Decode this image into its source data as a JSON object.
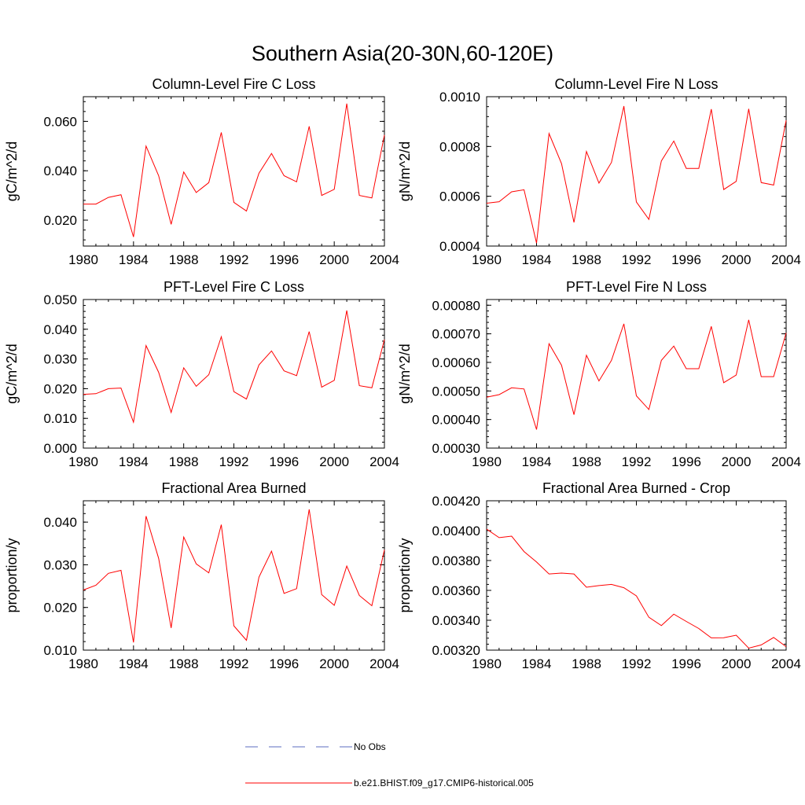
{
  "figure_title": "Southern Asia(20-30N,60-120E)",
  "colors": {
    "model_line": "#ff0000",
    "obs_line": "#5b6cc2",
    "axes": "#000000"
  },
  "legend": {
    "obs_label": "No Obs",
    "model_label": "b.e21.BHIST.f09_g17.CMIP6-historical.005"
  },
  "chart_data": [
    {
      "type": "line",
      "title": "Column-Level Fire C Loss",
      "xlabel": "",
      "ylabel": "gC/m^2/d",
      "xlim": [
        1980,
        2004
      ],
      "ylim": [
        0.0095,
        0.07
      ],
      "xticks": [
        "1980",
        "1984",
        "1988",
        "1992",
        "1996",
        "2000",
        "2004"
      ],
      "yticks": [
        {
          "v": 0.02,
          "label": "0.020"
        },
        {
          "v": 0.04,
          "label": "0.040"
        },
        {
          "v": 0.06,
          "label": "0.060"
        }
      ],
      "yminor": 0.004,
      "x": [
        1980,
        1981,
        1982,
        1983,
        1984,
        1985,
        1986,
        1987,
        1988,
        1989,
        1990,
        1991,
        1992,
        1993,
        1994,
        1995,
        1996,
        1997,
        1998,
        1999,
        2000,
        2001,
        2002,
        2003,
        2004
      ],
      "series": [
        {
          "values": [
            0.0265,
            0.0265,
            0.0292,
            0.0303,
            0.0132,
            0.05,
            0.038,
            0.0183,
            0.0395,
            0.0312,
            0.0352,
            0.0555,
            0.0272,
            0.0237,
            0.039,
            0.047,
            0.038,
            0.0355,
            0.058,
            0.03,
            0.0325,
            0.0672,
            0.03,
            0.029,
            0.0545
          ]
        }
      ]
    },
    {
      "type": "line",
      "title": "Column-Level Fire N Loss",
      "xlabel": "",
      "ylabel": "gN/m^2/d",
      "xlim": [
        1980,
        2004
      ],
      "ylim": [
        0.0004,
        0.001
      ],
      "xticks": [
        "1980",
        "1984",
        "1988",
        "1992",
        "1996",
        "2000",
        "2004"
      ],
      "yticks": [
        {
          "v": 0.0004,
          "label": "0.0004"
        },
        {
          "v": 0.0006,
          "label": "0.0006"
        },
        {
          "v": 0.0008,
          "label": "0.0008"
        },
        {
          "v": 0.001,
          "label": "0.0010"
        }
      ],
      "yminor": 4e-05,
      "x": [
        1980,
        1981,
        1982,
        1983,
        1984,
        1985,
        1986,
        1987,
        1988,
        1989,
        1990,
        1991,
        1992,
        1993,
        1994,
        1995,
        1996,
        1997,
        1998,
        1999,
        2000,
        2001,
        2002,
        2003,
        2004
      ],
      "series": [
        {
          "values": [
            0.000572,
            0.000578,
            0.000618,
            0.000626,
            0.000412,
            0.000852,
            0.000731,
            0.000495,
            0.00078,
            0.000653,
            0.000736,
            0.000962,
            0.000577,
            0.000507,
            0.000742,
            0.000822,
            0.000712,
            0.000712,
            0.00095,
            0.000627,
            0.00066,
            0.000951,
            0.000655,
            0.000645,
            0.000905
          ]
        }
      ]
    },
    {
      "type": "line",
      "title": "PFT-Level Fire C Loss",
      "xlabel": "",
      "ylabel": "gC/m^2/d",
      "xlim": [
        1980,
        2004
      ],
      "ylim": [
        0.0,
        0.05
      ],
      "xticks": [
        "1980",
        "1984",
        "1988",
        "1992",
        "1996",
        "2000",
        "2004"
      ],
      "yticks": [
        {
          "v": 0.0,
          "label": "0.000"
        },
        {
          "v": 0.01,
          "label": "0.010"
        },
        {
          "v": 0.02,
          "label": "0.020"
        },
        {
          "v": 0.03,
          "label": "0.030"
        },
        {
          "v": 0.04,
          "label": "0.040"
        },
        {
          "v": 0.05,
          "label": "0.050"
        }
      ],
      "yminor": 0.002,
      "x": [
        1980,
        1981,
        1982,
        1983,
        1984,
        1985,
        1986,
        1987,
        1988,
        1989,
        1990,
        1991,
        1992,
        1993,
        1994,
        1995,
        1996,
        1997,
        1998,
        1999,
        2000,
        2001,
        2002,
        2003,
        2004
      ],
      "series": [
        {
          "values": [
            0.0181,
            0.0183,
            0.02,
            0.0202,
            0.0087,
            0.0345,
            0.0255,
            0.012,
            0.027,
            0.0208,
            0.0247,
            0.0375,
            0.019,
            0.0165,
            0.028,
            0.0327,
            0.026,
            0.0244,
            0.0392,
            0.0205,
            0.0228,
            0.0463,
            0.021,
            0.0203,
            0.0365
          ]
        }
      ]
    },
    {
      "type": "line",
      "title": "PFT-Level Fire N Loss",
      "xlabel": "",
      "ylabel": "gN/m^2/d",
      "xlim": [
        1980,
        2004
      ],
      "ylim": [
        0.0003,
        0.00082
      ],
      "xticks": [
        "1980",
        "1984",
        "1988",
        "1992",
        "1996",
        "2000",
        "2004"
      ],
      "yticks": [
        {
          "v": 0.0003,
          "label": "0.00030"
        },
        {
          "v": 0.0004,
          "label": "0.00040"
        },
        {
          "v": 0.0005,
          "label": "0.00050"
        },
        {
          "v": 0.0006,
          "label": "0.00060"
        },
        {
          "v": 0.0007,
          "label": "0.00070"
        },
        {
          "v": 0.0008,
          "label": "0.00080"
        }
      ],
      "yminor": 2e-05,
      "x": [
        1980,
        1981,
        1982,
        1983,
        1984,
        1985,
        1986,
        1987,
        1988,
        1989,
        1990,
        1991,
        1992,
        1993,
        1994,
        1995,
        1996,
        1997,
        1998,
        1999,
        2000,
        2001,
        2002,
        2003,
        2004
      ],
      "series": [
        {
          "values": [
            0.000478,
            0.000487,
            0.000511,
            0.000507,
            0.000365,
            0.000665,
            0.00059,
            0.000417,
            0.000625,
            0.000535,
            0.000607,
            0.000735,
            0.000483,
            0.000435,
            0.000607,
            0.000657,
            0.000578,
            0.000578,
            0.000726,
            0.000529,
            0.000556,
            0.000749,
            0.00055,
            0.00055,
            0.000703
          ]
        }
      ]
    },
    {
      "type": "line",
      "title": "Fractional Area Burned",
      "xlabel": "",
      "ylabel": "proportion/y",
      "xlim": [
        1980,
        2004
      ],
      "ylim": [
        0.01,
        0.045
      ],
      "xticks": [
        "1980",
        "1984",
        "1988",
        "1992",
        "1996",
        "2000",
        "2004"
      ],
      "yticks": [
        {
          "v": 0.01,
          "label": "0.010"
        },
        {
          "v": 0.02,
          "label": "0.020"
        },
        {
          "v": 0.03,
          "label": "0.030"
        },
        {
          "v": 0.04,
          "label": "0.040"
        }
      ],
      "yminor": 0.002,
      "x": [
        1980,
        1981,
        1982,
        1983,
        1984,
        1985,
        1986,
        1987,
        1988,
        1989,
        1990,
        1991,
        1992,
        1993,
        1994,
        1995,
        1996,
        1997,
        1998,
        1999,
        2000,
        2001,
        2002,
        2003,
        2004
      ],
      "series": [
        {
          "values": [
            0.0241,
            0.0252,
            0.028,
            0.0287,
            0.0118,
            0.0414,
            0.0315,
            0.0152,
            0.0365,
            0.0302,
            0.0281,
            0.0394,
            0.0157,
            0.0123,
            0.0271,
            0.0332,
            0.0233,
            0.0244,
            0.043,
            0.023,
            0.0205,
            0.0297,
            0.0228,
            0.0204,
            0.0335
          ]
        }
      ]
    },
    {
      "type": "line",
      "title": "Fractional Area Burned - Crop",
      "xlabel": "",
      "ylabel": "proportion/y",
      "xlim": [
        1980,
        2004
      ],
      "ylim": [
        0.0032,
        0.0042
      ],
      "xticks": [
        "1980",
        "1984",
        "1988",
        "1992",
        "1996",
        "2000",
        "2004"
      ],
      "yticks": [
        {
          "v": 0.0032,
          "label": "0.00320"
        },
        {
          "v": 0.0034,
          "label": "0.00340"
        },
        {
          "v": 0.0036,
          "label": "0.00360"
        },
        {
          "v": 0.0038,
          "label": "0.00380"
        },
        {
          "v": 0.004,
          "label": "0.00400"
        },
        {
          "v": 0.0042,
          "label": "0.00420"
        }
      ],
      "yminor": 4e-05,
      "x": [
        1980,
        1981,
        1982,
        1983,
        1984,
        1985,
        1986,
        1987,
        1988,
        1989,
        1990,
        1991,
        1992,
        1993,
        1994,
        1995,
        1996,
        1997,
        1998,
        1999,
        2000,
        2001,
        2002,
        2003,
        2004
      ],
      "series": [
        {
          "values": [
            0.00401,
            0.003953,
            0.003963,
            0.00386,
            0.00379,
            0.00371,
            0.003716,
            0.00371,
            0.003621,
            0.003632,
            0.00364,
            0.003618,
            0.003563,
            0.00342,
            0.003364,
            0.003441,
            0.003392,
            0.003345,
            0.003282,
            0.003283,
            0.0033,
            0.003213,
            0.003235,
            0.003285,
            0.003223
          ]
        }
      ]
    }
  ]
}
